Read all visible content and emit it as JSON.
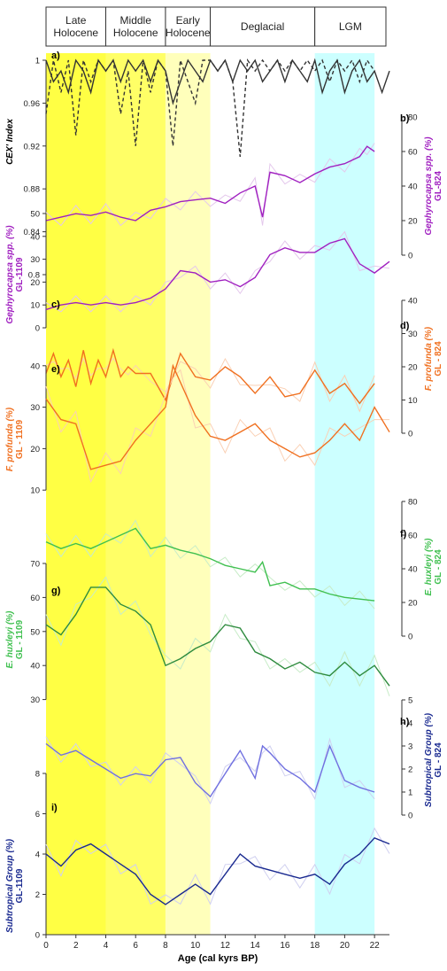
{
  "colors": {
    "late_holocene_band": "#ffff44",
    "middle_holocene_band": "#ffff66",
    "early_holocene_band": "#ffffbb",
    "lgm_band": "#ccffff",
    "cex": "#333333",
    "gephyrocapsa": "#a020c0",
    "gephyrocapsa_light": "#e4c8ec",
    "f_profunda": "#f07020",
    "f_profunda_light": "#fad0b4",
    "e_huxleyi_824": "#40c050",
    "e_huxleyi_1109": "#2e8b3e",
    "e_huxleyi_light": "#c8ecc8",
    "subtropical_824": "#7070e0",
    "subtropical_1109": "#1a2a90",
    "subtropical_light": "#d0d0f0"
  },
  "periods": [
    {
      "label": "Late\nHolocene",
      "start": 0,
      "end": 4
    },
    {
      "label": "Middle\nHolocene",
      "start": 4,
      "end": 8
    },
    {
      "label": "Early\nHolocene",
      "start": 8,
      "end": 11
    },
    {
      "label": "Deglacial",
      "start": 11,
      "end": 18
    },
    {
      "label": "LGM",
      "start": 18,
      "end": 22
    }
  ],
  "chart_data": {
    "type": "line",
    "xlabel": "Age (cal kyrs BP)",
    "xlim": [
      0,
      23
    ],
    "xticks": [
      0,
      2,
      4,
      6,
      8,
      10,
      12,
      14,
      16,
      18,
      20,
      22
    ],
    "panels": [
      {
        "letter": "a)",
        "ylabel": "CEX' Index",
        "side": "left",
        "yticks": [
          "1",
          "0.96",
          "0.92",
          "0.88",
          "0.84",
          "0.8"
        ],
        "series": [
          {
            "style": "solid",
            "x": [
              0,
              0.5,
              1,
              1.5,
              2,
              2.5,
              3,
              3.5,
              4,
              4.5,
              5,
              5.5,
              6,
              6.5,
              7,
              7.5,
              8,
              8.5,
              9,
              9.5,
              10,
              10.5,
              11,
              11.5,
              12,
              12.5,
              13,
              13.5,
              14,
              14.5,
              15,
              15.5,
              16,
              16.5,
              17,
              17.5,
              18,
              18.5,
              19,
              19.5,
              20,
              20.5,
              21,
              21.5,
              22,
              22.5,
              23
            ],
            "y": [
              1,
              0.98,
              0.99,
              0.97,
              1,
              0.99,
              0.97,
              1,
              0.99,
              1,
              0.98,
              1,
              0.99,
              1,
              0.98,
              1,
              0.99,
              0.96,
              0.98,
              1,
              0.99,
              0.98,
              1,
              0.99,
              1,
              0.98,
              1,
              0.99,
              1,
              0.98,
              0.99,
              1,
              0.98,
              1,
              0.99,
              0.98,
              1,
              0.97,
              0.99,
              1,
              0.97,
              0.99,
              1,
              0.98,
              0.99,
              0.97,
              0.99
            ]
          },
          {
            "style": "dashed",
            "x": [
              0,
              0.5,
              1,
              1.5,
              2,
              2.5,
              3,
              3.5,
              4,
              4.5,
              5,
              5.5,
              6,
              6.5,
              7,
              7.5,
              8,
              8.5,
              9,
              9.5,
              10,
              10.5,
              11,
              11.5,
              12,
              12.5,
              13,
              13.5,
              14,
              14.5,
              15,
              15.5,
              16,
              16.5,
              17,
              17.5,
              18,
              18.5,
              19,
              19.5,
              20,
              20.5,
              21,
              21.5,
              22
            ],
            "y": [
              0.95,
              1,
              0.97,
              1,
              0.93,
              1,
              0.98,
              1,
              0.99,
              1,
              0.95,
              0.99,
              0.92,
              1,
              0.97,
              1,
              0.99,
              0.92,
              1,
              0.98,
              0.96,
              1,
              1,
              0.99,
              1,
              0.98,
              0.91,
              1,
              0.99,
              1,
              0.99,
              1,
              0.99,
              1,
              0.99,
              1,
              0.99,
              1,
              0.98,
              1,
              0.99,
              1,
              0.98,
              1,
              0.99
            ]
          }
        ]
      },
      {
        "letter": "b)",
        "ylabel": "Gephyrocapsa spp. (%)",
        "ylabel2": "GL-824",
        "side": "right",
        "yticks": [
          "80",
          "60",
          "40",
          "20",
          "0"
        ],
        "series": [
          {
            "x": [
              0,
              1,
              2,
              3,
              4,
              5,
              6,
              7,
              8,
              9,
              10,
              11,
              12,
              13,
              14,
              14.5,
              15,
              16,
              17,
              18,
              19,
              20,
              21,
              21.5,
              22
            ],
            "y": [
              20,
              22,
              24,
              23,
              25,
              22,
              20,
              26,
              28,
              31,
              32,
              33,
              30,
              36,
              40,
              22,
              48,
              46,
              42,
              47,
              51,
              53,
              57,
              63,
              60
            ]
          }
        ]
      },
      {
        "letter": "c)",
        "ylabel": "Gephyrocapsa spp. (%)",
        "ylabel2": "GL-1109",
        "side": "left",
        "yticks": [
          "50",
          "40",
          "30",
          "20",
          "10",
          "0"
        ],
        "series": [
          {
            "x": [
              0,
              1,
              2,
              3,
              4,
              5,
              6,
              7,
              8,
              9,
              10,
              11,
              12,
              13,
              14,
              15,
              16,
              17,
              18,
              19,
              20,
              21,
              22,
              23
            ],
            "y": [
              8,
              10,
              11,
              10,
              11,
              10,
              11,
              13,
              17,
              25,
              24,
              20,
              21,
              18,
              22,
              32,
              35,
              33,
              33,
              37,
              39,
              28,
              24,
              29
            ]
          }
        ]
      },
      {
        "letter": "d)",
        "ylabel": "F. profunda (%)",
        "ylabel2": "GL - 824",
        "side": "right",
        "yticks": [
          "40",
          "30",
          "20",
          "10",
          "0"
        ],
        "series": [
          {
            "x": [
              0,
              0.5,
              1,
              1.5,
              2,
              2.5,
              3,
              3.5,
              4,
              4.5,
              5,
              5.5,
              6,
              7,
              8,
              9,
              10,
              11,
              12,
              13,
              14,
              15,
              16,
              17,
              18,
              19,
              20,
              21,
              22
            ],
            "y": [
              18,
              24,
              17,
              22,
              14,
              25,
              15,
              22,
              17,
              25,
              17,
              20,
              18,
              18,
              10,
              24,
              17,
              16,
              20,
              17,
              12,
              17,
              11,
              12,
              19,
              12,
              15,
              9,
              15
            ]
          }
        ]
      },
      {
        "letter": "e)",
        "ylabel": "F. profunda (%)",
        "ylabel2": "GL - 1109",
        "side": "left",
        "yticks": [
          "40",
          "30",
          "20",
          "10"
        ],
        "series": [
          {
            "x": [
              0,
              1,
              2,
              3,
              4,
              5,
              6,
              7,
              8,
              8.5,
              9,
              10,
              11,
              12,
              13,
              14,
              15,
              16,
              17,
              18,
              19,
              20,
              21,
              22,
              23
            ],
            "y": [
              32,
              27,
              26,
              15,
              16,
              17,
              22,
              26,
              30,
              40,
              36,
              28,
              23,
              22,
              24,
              26,
              22,
              20,
              18,
              19,
              22,
              26,
              22,
              30,
              24
            ]
          }
        ]
      },
      {
        "letter": "f)",
        "ylabel": "E. huxleyi (%)",
        "ylabel2": "GL - 824",
        "side": "right",
        "yticks": [
          "80",
          "60",
          "40",
          "20",
          "0"
        ],
        "series": [
          {
            "x": [
              0,
              1,
              2,
              3,
              4,
              5,
              6,
              7,
              8,
              9,
              10,
              11,
              12,
              13,
              14,
              14.5,
              15,
              16,
              17,
              18,
              19,
              20,
              21,
              22
            ],
            "y": [
              56,
              52,
              55,
              52,
              56,
              60,
              64,
              52,
              54,
              51,
              49,
              46,
              42,
              40,
              38,
              44,
              30,
              32,
              28,
              28,
              25,
              23,
              22,
              21
            ]
          }
        ]
      },
      {
        "letter": "g)",
        "ylabel": "E. huxleyi (%)",
        "ylabel2": "GL - 1109",
        "side": "left",
        "yticks": [
          "70",
          "60",
          "50",
          "40",
          "30"
        ],
        "series": [
          {
            "x": [
              0,
              1,
              2,
              3,
              4,
              5,
              6,
              7,
              8,
              9,
              10,
              11,
              12,
              13,
              14,
              15,
              16,
              17,
              18,
              19,
              20,
              21,
              22,
              23
            ],
            "y": [
              52,
              49,
              55,
              63,
              63,
              58,
              56,
              52,
              40,
              42,
              45,
              47,
              52,
              51,
              44,
              42,
              39,
              41,
              38,
              37,
              41,
              37,
              40,
              34
            ]
          }
        ]
      },
      {
        "letter": "h)",
        "ylabel": "Subtropical Group (%)",
        "ylabel2": "GL - 824",
        "side": "right",
        "yticks": [
          "5",
          "4",
          "3",
          "2",
          "1",
          "0"
        ],
        "series": [
          {
            "x": [
              0,
              1,
              2,
              3,
              4,
              5,
              6,
              7,
              8,
              9,
              10,
              11,
              12,
              13,
              14,
              14.5,
              15,
              16,
              17,
              18,
              19,
              20,
              21,
              22
            ],
            "y": [
              3.1,
              2.6,
              2.8,
              2.4,
              2.0,
              1.6,
              1.8,
              1.7,
              2.4,
              2.5,
              1.4,
              0.8,
              1.8,
              2.8,
              1.6,
              3.0,
              2.7,
              2.0,
              1.6,
              1.0,
              3.0,
              1.5,
              1.2,
              1.0
            ]
          }
        ]
      },
      {
        "letter": "i)",
        "ylabel": "Subtropical Group (%)",
        "ylabel2": "GL-1109",
        "side": "left",
        "yticks": [
          "8",
          "6",
          "4",
          "2",
          "0"
        ],
        "series": [
          {
            "x": [
              0,
              1,
              2,
              3,
              4,
              5,
              6,
              7,
              8,
              9,
              10,
              11,
              12,
              13,
              14,
              15,
              16,
              17,
              18,
              19,
              20,
              21,
              22,
              23
            ],
            "y": [
              4.0,
              3.4,
              4.2,
              4.5,
              4.0,
              3.5,
              3.0,
              2.0,
              1.5,
              2.0,
              2.5,
              2.0,
              3.0,
              4.0,
              3.4,
              3.2,
              3.0,
              2.8,
              3.0,
              2.5,
              3.5,
              4.0,
              4.8,
              4.5
            ]
          }
        ]
      }
    ]
  }
}
